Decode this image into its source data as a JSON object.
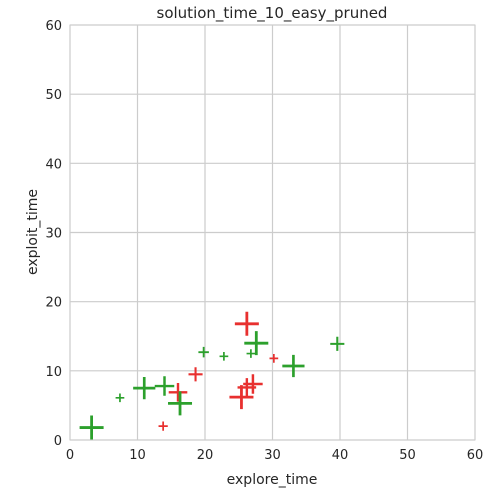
{
  "chart_data": {
    "type": "scatter",
    "title": "solution_time_10_easy_pruned",
    "xlabel": "explore_time",
    "ylabel": "exploit_time",
    "xlim": [
      0,
      60
    ],
    "ylim": [
      0,
      60
    ],
    "xticks": [
      "0",
      "10",
      "20",
      "30",
      "40",
      "50",
      "60"
    ],
    "yticks": [
      "0",
      "10",
      "20",
      "30",
      "40",
      "50",
      "60"
    ],
    "grid": true,
    "colors": {
      "red": "#e8302f",
      "green": "#2ca02c",
      "grid": "#cccccc",
      "frame": "#cccccc"
    },
    "series": [
      {
        "color": "#e8302f",
        "points": [
          {
            "x": 26.2,
            "y": 16.8,
            "size": 1.0
          },
          {
            "x": 18.6,
            "y": 9.5,
            "size": 0.45
          },
          {
            "x": 16.0,
            "y": 6.9,
            "size": 0.7
          },
          {
            "x": 13.8,
            "y": 2.0,
            "size": 0.18
          },
          {
            "x": 25.4,
            "y": 6.2,
            "size": 1.0
          },
          {
            "x": 26.2,
            "y": 7.6,
            "size": 0.7
          },
          {
            "x": 27.1,
            "y": 8.1,
            "size": 0.75
          },
          {
            "x": 30.2,
            "y": 11.8,
            "size": 0.15
          }
        ]
      },
      {
        "color": "#2ca02c",
        "points": [
          {
            "x": 3.2,
            "y": 1.8,
            "size": 1.0
          },
          {
            "x": 7.4,
            "y": 6.1,
            "size": 0.15
          },
          {
            "x": 11.0,
            "y": 7.5,
            "size": 0.9
          },
          {
            "x": 14.0,
            "y": 7.8,
            "size": 0.75
          },
          {
            "x": 16.3,
            "y": 5.3,
            "size": 1.0
          },
          {
            "x": 19.8,
            "y": 12.7,
            "size": 0.25
          },
          {
            "x": 22.8,
            "y": 12.1,
            "size": 0.15
          },
          {
            "x": 26.8,
            "y": 12.5,
            "size": 0.15
          },
          {
            "x": 27.6,
            "y": 14.0,
            "size": 1.0
          },
          {
            "x": 33.1,
            "y": 10.7,
            "size": 0.9
          },
          {
            "x": 39.6,
            "y": 13.9,
            "size": 0.45
          }
        ]
      }
    ]
  }
}
